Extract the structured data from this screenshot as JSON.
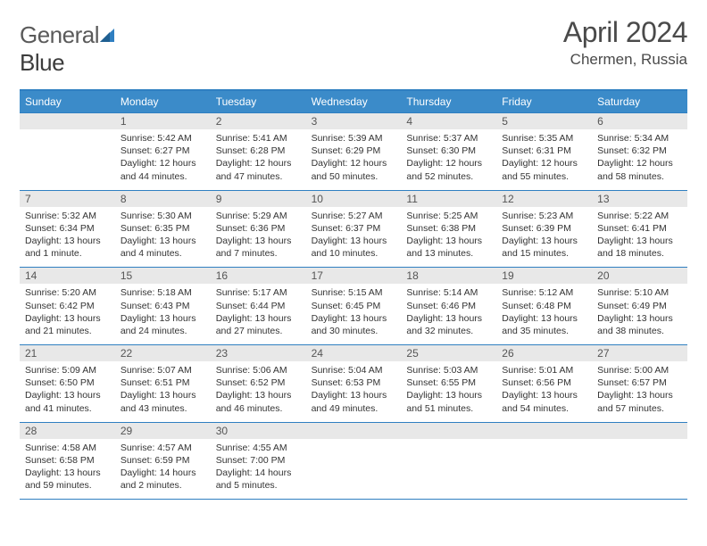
{
  "brand": {
    "part1": "General",
    "part2": "Blue"
  },
  "title": "April 2024",
  "location": "Chermen, Russia",
  "colors": {
    "header_bg": "#3b8bc9",
    "border": "#2f7fc1",
    "daynum_bg": "#e8e8e8",
    "logo_blue": "#2f7fc1"
  },
  "weekdays": [
    "Sunday",
    "Monday",
    "Tuesday",
    "Wednesday",
    "Thursday",
    "Friday",
    "Saturday"
  ],
  "weeks": [
    {
      "nums": [
        "",
        "1",
        "2",
        "3",
        "4",
        "5",
        "6"
      ],
      "cells": [
        {
          "empty": true
        },
        {
          "sunrise": "Sunrise: 5:42 AM",
          "sunset": "Sunset: 6:27 PM",
          "day1": "Daylight: 12 hours",
          "day2": "and 44 minutes."
        },
        {
          "sunrise": "Sunrise: 5:41 AM",
          "sunset": "Sunset: 6:28 PM",
          "day1": "Daylight: 12 hours",
          "day2": "and 47 minutes."
        },
        {
          "sunrise": "Sunrise: 5:39 AM",
          "sunset": "Sunset: 6:29 PM",
          "day1": "Daylight: 12 hours",
          "day2": "and 50 minutes."
        },
        {
          "sunrise": "Sunrise: 5:37 AM",
          "sunset": "Sunset: 6:30 PM",
          "day1": "Daylight: 12 hours",
          "day2": "and 52 minutes."
        },
        {
          "sunrise": "Sunrise: 5:35 AM",
          "sunset": "Sunset: 6:31 PM",
          "day1": "Daylight: 12 hours",
          "day2": "and 55 minutes."
        },
        {
          "sunrise": "Sunrise: 5:34 AM",
          "sunset": "Sunset: 6:32 PM",
          "day1": "Daylight: 12 hours",
          "day2": "and 58 minutes."
        }
      ]
    },
    {
      "nums": [
        "7",
        "8",
        "9",
        "10",
        "11",
        "12",
        "13"
      ],
      "cells": [
        {
          "sunrise": "Sunrise: 5:32 AM",
          "sunset": "Sunset: 6:34 PM",
          "day1": "Daylight: 13 hours",
          "day2": "and 1 minute."
        },
        {
          "sunrise": "Sunrise: 5:30 AM",
          "sunset": "Sunset: 6:35 PM",
          "day1": "Daylight: 13 hours",
          "day2": "and 4 minutes."
        },
        {
          "sunrise": "Sunrise: 5:29 AM",
          "sunset": "Sunset: 6:36 PM",
          "day1": "Daylight: 13 hours",
          "day2": "and 7 minutes."
        },
        {
          "sunrise": "Sunrise: 5:27 AM",
          "sunset": "Sunset: 6:37 PM",
          "day1": "Daylight: 13 hours",
          "day2": "and 10 minutes."
        },
        {
          "sunrise": "Sunrise: 5:25 AM",
          "sunset": "Sunset: 6:38 PM",
          "day1": "Daylight: 13 hours",
          "day2": "and 13 minutes."
        },
        {
          "sunrise": "Sunrise: 5:23 AM",
          "sunset": "Sunset: 6:39 PM",
          "day1": "Daylight: 13 hours",
          "day2": "and 15 minutes."
        },
        {
          "sunrise": "Sunrise: 5:22 AM",
          "sunset": "Sunset: 6:41 PM",
          "day1": "Daylight: 13 hours",
          "day2": "and 18 minutes."
        }
      ]
    },
    {
      "nums": [
        "14",
        "15",
        "16",
        "17",
        "18",
        "19",
        "20"
      ],
      "cells": [
        {
          "sunrise": "Sunrise: 5:20 AM",
          "sunset": "Sunset: 6:42 PM",
          "day1": "Daylight: 13 hours",
          "day2": "and 21 minutes."
        },
        {
          "sunrise": "Sunrise: 5:18 AM",
          "sunset": "Sunset: 6:43 PM",
          "day1": "Daylight: 13 hours",
          "day2": "and 24 minutes."
        },
        {
          "sunrise": "Sunrise: 5:17 AM",
          "sunset": "Sunset: 6:44 PM",
          "day1": "Daylight: 13 hours",
          "day2": "and 27 minutes."
        },
        {
          "sunrise": "Sunrise: 5:15 AM",
          "sunset": "Sunset: 6:45 PM",
          "day1": "Daylight: 13 hours",
          "day2": "and 30 minutes."
        },
        {
          "sunrise": "Sunrise: 5:14 AM",
          "sunset": "Sunset: 6:46 PM",
          "day1": "Daylight: 13 hours",
          "day2": "and 32 minutes."
        },
        {
          "sunrise": "Sunrise: 5:12 AM",
          "sunset": "Sunset: 6:48 PM",
          "day1": "Daylight: 13 hours",
          "day2": "and 35 minutes."
        },
        {
          "sunrise": "Sunrise: 5:10 AM",
          "sunset": "Sunset: 6:49 PM",
          "day1": "Daylight: 13 hours",
          "day2": "and 38 minutes."
        }
      ]
    },
    {
      "nums": [
        "21",
        "22",
        "23",
        "24",
        "25",
        "26",
        "27"
      ],
      "cells": [
        {
          "sunrise": "Sunrise: 5:09 AM",
          "sunset": "Sunset: 6:50 PM",
          "day1": "Daylight: 13 hours",
          "day2": "and 41 minutes."
        },
        {
          "sunrise": "Sunrise: 5:07 AM",
          "sunset": "Sunset: 6:51 PM",
          "day1": "Daylight: 13 hours",
          "day2": "and 43 minutes."
        },
        {
          "sunrise": "Sunrise: 5:06 AM",
          "sunset": "Sunset: 6:52 PM",
          "day1": "Daylight: 13 hours",
          "day2": "and 46 minutes."
        },
        {
          "sunrise": "Sunrise: 5:04 AM",
          "sunset": "Sunset: 6:53 PM",
          "day1": "Daylight: 13 hours",
          "day2": "and 49 minutes."
        },
        {
          "sunrise": "Sunrise: 5:03 AM",
          "sunset": "Sunset: 6:55 PM",
          "day1": "Daylight: 13 hours",
          "day2": "and 51 minutes."
        },
        {
          "sunrise": "Sunrise: 5:01 AM",
          "sunset": "Sunset: 6:56 PM",
          "day1": "Daylight: 13 hours",
          "day2": "and 54 minutes."
        },
        {
          "sunrise": "Sunrise: 5:00 AM",
          "sunset": "Sunset: 6:57 PM",
          "day1": "Daylight: 13 hours",
          "day2": "and 57 minutes."
        }
      ]
    },
    {
      "nums": [
        "28",
        "29",
        "30",
        "",
        "",
        "",
        ""
      ],
      "cells": [
        {
          "sunrise": "Sunrise: 4:58 AM",
          "sunset": "Sunset: 6:58 PM",
          "day1": "Daylight: 13 hours",
          "day2": "and 59 minutes."
        },
        {
          "sunrise": "Sunrise: 4:57 AM",
          "sunset": "Sunset: 6:59 PM",
          "day1": "Daylight: 14 hours",
          "day2": "and 2 minutes."
        },
        {
          "sunrise": "Sunrise: 4:55 AM",
          "sunset": "Sunset: 7:00 PM",
          "day1": "Daylight: 14 hours",
          "day2": "and 5 minutes."
        },
        {
          "empty": true
        },
        {
          "empty": true
        },
        {
          "empty": true
        },
        {
          "empty": true
        }
      ]
    }
  ]
}
